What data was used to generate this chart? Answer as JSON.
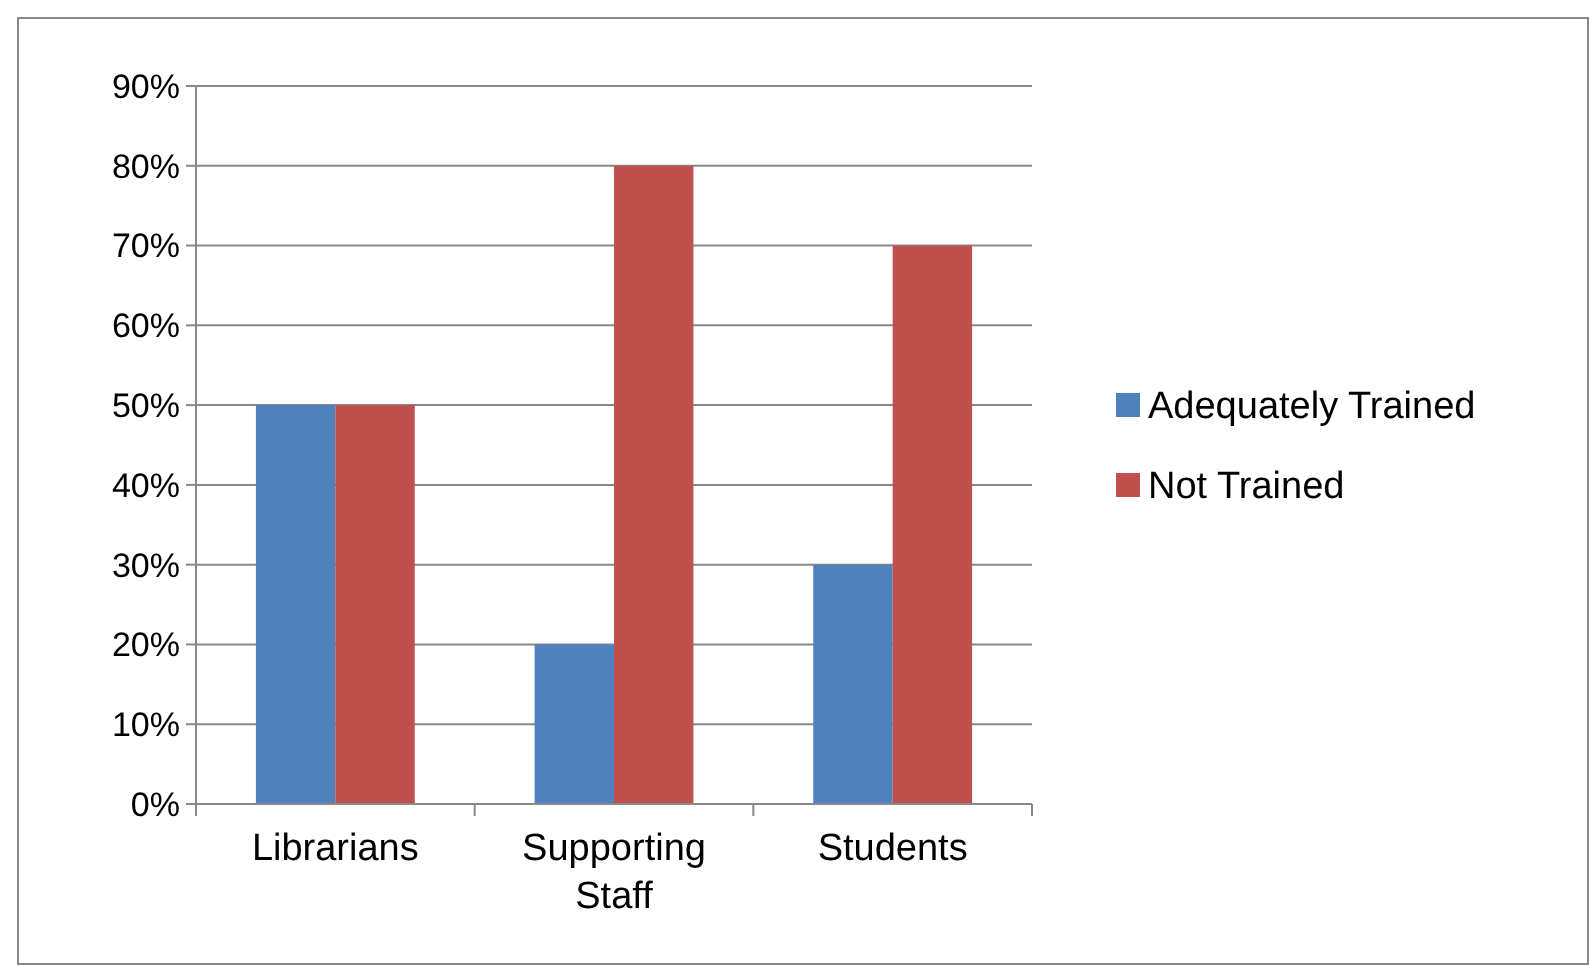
{
  "chart_data": {
    "type": "bar",
    "categories": [
      "Librarians",
      "Supporting Staff",
      "Students"
    ],
    "series": [
      {
        "name": "Adequately Trained",
        "color": "#4f81bd",
        "values": [
          50,
          20,
          30
        ]
      },
      {
        "name": "Not Trained",
        "color": "#c0504d",
        "values": [
          50,
          80,
          70
        ]
      }
    ],
    "ylim": [
      0,
      90
    ],
    "yticks": [
      {
        "value": 0,
        "label": "0%"
      },
      {
        "value": 10,
        "label": "10%"
      },
      {
        "value": 20,
        "label": "20%"
      },
      {
        "value": 30,
        "label": "30%"
      },
      {
        "value": 40,
        "label": "40%"
      },
      {
        "value": 50,
        "label": "50%"
      },
      {
        "value": 60,
        "label": "60%"
      },
      {
        "value": 70,
        "label": "70%"
      },
      {
        "value": 80,
        "label": "80%"
      },
      {
        "value": 90,
        "label": "90%"
      }
    ],
    "grid": "y",
    "legend": "right"
  }
}
